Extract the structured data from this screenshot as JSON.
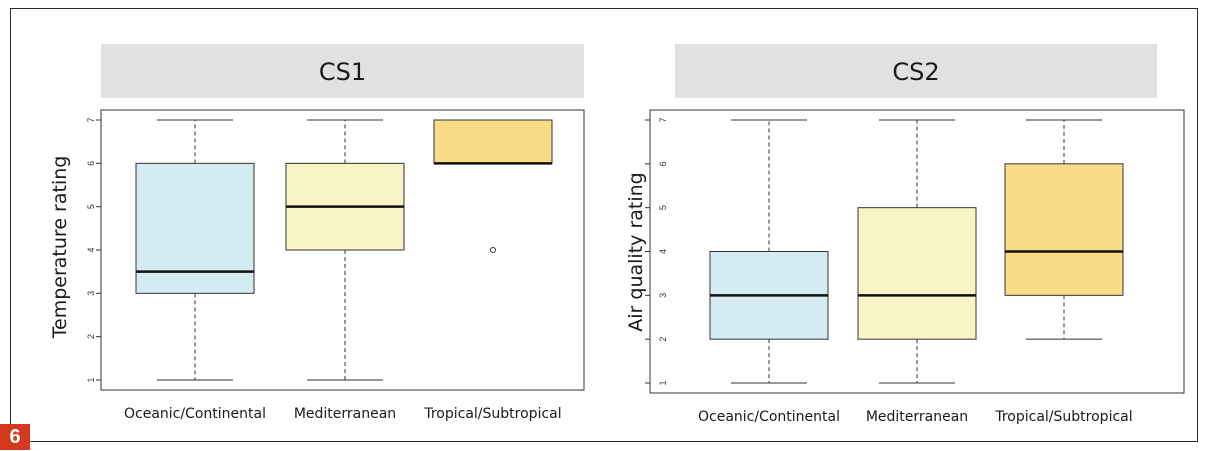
{
  "figure_badge": "6",
  "chart_data": [
    {
      "type": "boxplot",
      "panel_label": "CS1",
      "ylabel": "Temperature rating",
      "ylim": [
        1,
        7
      ],
      "yticks": [
        1,
        2,
        3,
        4,
        5,
        6,
        7
      ],
      "categories": [
        "Oceanic/Continental",
        "Mediterranean",
        "Tropical/Subtropical"
      ],
      "colors": [
        "#d4ebf2",
        "#f8f4c6",
        "#fbdc86"
      ],
      "boxes": [
        {
          "min": 1,
          "q1": 3,
          "median": 3.5,
          "q3": 6,
          "max": 7,
          "outliers": []
        },
        {
          "min": 1,
          "q1": 4,
          "median": 5,
          "q3": 6,
          "max": 7,
          "outliers": []
        },
        {
          "min": 6,
          "q1": 6,
          "median": 6,
          "q3": 7,
          "max": 7,
          "outliers": [
            4
          ]
        }
      ]
    },
    {
      "type": "boxplot",
      "panel_label": "CS2",
      "ylabel": "Air quality rating",
      "ylim": [
        1,
        7
      ],
      "yticks": [
        1,
        2,
        3,
        4,
        5,
        6,
        7
      ],
      "categories": [
        "Oceanic/Continental",
        "Mediterranean",
        "Tropical/Subtropical"
      ],
      "colors": [
        "#d4ebf2",
        "#f8f4c6",
        "#fbdc86"
      ],
      "boxes": [
        {
          "min": 1,
          "q1": 2,
          "median": 3,
          "q3": 4,
          "max": 7,
          "outliers": []
        },
        {
          "min": 1,
          "q1": 2,
          "median": 3,
          "q3": 5,
          "max": 7,
          "outliers": []
        },
        {
          "min": 2,
          "q1": 3,
          "median": 4,
          "q3": 6,
          "max": 7,
          "outliers": []
        }
      ]
    }
  ]
}
